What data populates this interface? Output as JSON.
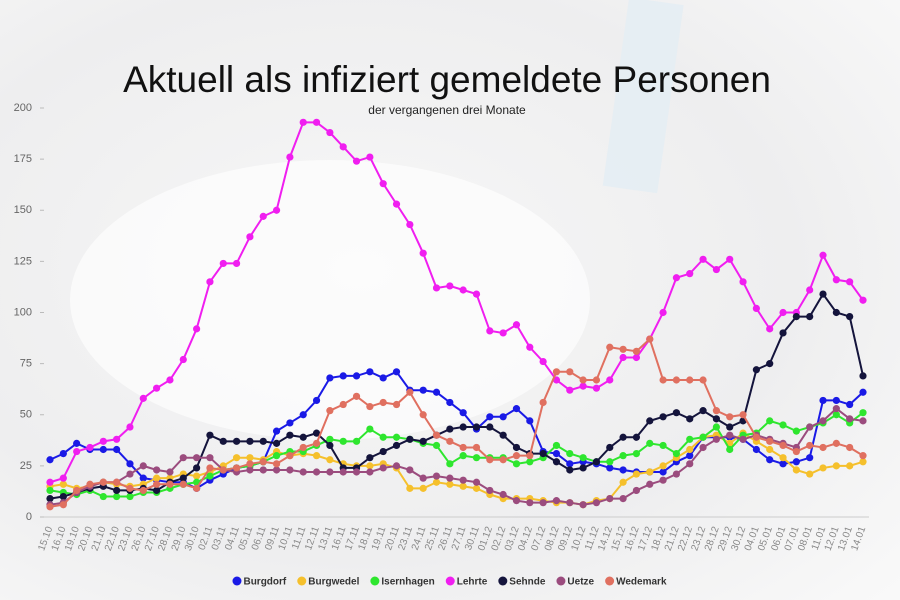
{
  "chart_data": {
    "type": "line",
    "title": "Aktuell als infiziert gemeldete Personen",
    "subtitle": "der vergangenen drei Monate",
    "categories": [
      "15.10",
      "16.10",
      "19.10",
      "20.10",
      "21.10",
      "22.10",
      "23.10",
      "26.10",
      "27.10",
      "28.10",
      "29.10",
      "30.10",
      "02.11",
      "03.11",
      "04.11",
      "05.11",
      "06.11",
      "09.11",
      "10.11",
      "11.11",
      "12.11",
      "13.11",
      "16.11",
      "17.11",
      "18.11",
      "19.11",
      "20.11",
      "23.11",
      "24.11",
      "25.11",
      "26.11",
      "27.11",
      "30.11",
      "01.12",
      "02.12",
      "03.12",
      "04.12",
      "07.12",
      "08.12",
      "09.12",
      "10.12",
      "11.12",
      "14.12",
      "15.12",
      "16.12",
      "17.12",
      "18.12",
      "21.12",
      "22.12",
      "23.12",
      "28.12",
      "29.12",
      "30.12",
      "04.01",
      "05.01",
      "06.01",
      "07.01",
      "08.01",
      "11.01",
      "12.01",
      "13.01",
      "14.01"
    ],
    "ylim": [
      0,
      200
    ],
    "yticks": [
      0,
      25,
      50,
      75,
      100,
      125,
      150,
      175,
      200
    ],
    "legend": "bottom",
    "series": [
      {
        "name": "Burgdorf",
        "color": "#1a1ae6",
        "values": [
          28,
          31,
          36,
          33,
          33,
          33,
          26,
          19,
          18,
          17,
          17,
          14,
          18,
          21,
          24,
          25,
          27,
          42,
          46,
          50,
          57,
          68,
          69,
          69,
          71,
          68,
          71,
          62,
          62,
          61,
          56,
          51,
          43,
          49,
          49,
          53,
          47,
          32,
          31,
          26,
          27,
          26,
          24,
          23,
          22,
          22,
          22,
          27,
          30,
          39,
          39,
          39,
          38,
          33,
          28,
          26,
          27,
          29,
          57,
          57,
          55,
          61
        ]
      },
      {
        "name": "Burgwedel",
        "color": "#f5c02c",
        "values": [
          15,
          16,
          14,
          15,
          17,
          16,
          15,
          16,
          19,
          19,
          21,
          20,
          22,
          25,
          29,
          29,
          28,
          32,
          30,
          31,
          30,
          28,
          26,
          25,
          25,
          26,
          24,
          14,
          14,
          17,
          16,
          15,
          14,
          11,
          9,
          9,
          9,
          8,
          7,
          7,
          6,
          8,
          9,
          17,
          21,
          22,
          25,
          29,
          33,
          39,
          40,
          36,
          41,
          37,
          33,
          29,
          23,
          21,
          24,
          25,
          25,
          27
        ]
      },
      {
        "name": "Isernhagen",
        "color": "#2ee62e",
        "values": [
          13,
          12,
          11,
          13,
          10,
          10,
          10,
          12,
          12,
          14,
          16,
          17,
          20,
          23,
          24,
          25,
          27,
          30,
          32,
          32,
          35,
          38,
          37,
          37,
          43,
          39,
          39,
          38,
          36,
          35,
          26,
          30,
          29,
          29,
          29,
          26,
          27,
          29,
          35,
          31,
          29,
          27,
          27,
          30,
          31,
          36,
          35,
          31,
          38,
          39,
          44,
          33,
          40,
          41,
          47,
          45,
          42,
          44,
          46,
          50,
          46,
          51
        ]
      },
      {
        "name": "Lehrte",
        "color": "#f01ef0",
        "values": [
          17,
          19,
          32,
          34,
          37,
          38,
          44,
          58,
          63,
          67,
          77,
          92,
          115,
          124,
          124,
          137,
          147,
          150,
          176,
          193,
          193,
          188,
          181,
          174,
          176,
          163,
          153,
          143,
          129,
          112,
          113,
          111,
          109,
          91,
          90,
          94,
          83,
          76,
          67,
          62,
          64,
          63,
          67,
          78,
          78,
          87,
          100,
          117,
          119,
          126,
          121,
          126,
          115,
          102,
          92,
          100,
          100,
          111,
          128,
          116,
          115,
          106
        ]
      },
      {
        "name": "Sehnde",
        "color": "#14143c",
        "values": [
          9,
          10,
          12,
          14,
          15,
          13,
          13,
          14,
          13,
          17,
          19,
          24,
          40,
          37,
          37,
          37,
          37,
          36,
          40,
          39,
          41,
          35,
          24,
          24,
          29,
          32,
          35,
          38,
          37,
          40,
          43,
          44,
          44,
          44,
          40,
          34,
          31,
          31,
          27,
          23,
          24,
          27,
          34,
          39,
          39,
          47,
          49,
          51,
          48,
          52,
          48,
          44,
          47,
          72,
          75,
          90,
          98,
          98,
          109,
          100,
          98,
          69
        ]
      },
      {
        "name": "Uetze",
        "color": "#9b4c7e",
        "values": [
          6,
          7,
          12,
          15,
          17,
          17,
          21,
          25,
          23,
          22,
          29,
          29,
          29,
          23,
          22,
          23,
          23,
          23,
          23,
          22,
          22,
          22,
          22,
          22,
          22,
          24,
          25,
          23,
          19,
          20,
          19,
          18,
          17,
          13,
          11,
          8,
          7,
          7,
          8,
          7,
          6,
          7,
          9,
          9,
          13,
          16,
          18,
          21,
          26,
          34,
          38,
          40,
          38,
          40,
          38,
          36,
          34,
          44,
          47,
          53,
          48,
          47
        ]
      },
      {
        "name": "Wedemark",
        "color": "#e07060",
        "values": [
          5,
          6,
          13,
          16,
          17,
          17,
          14,
          13,
          16,
          16,
          16,
          14,
          24,
          23,
          24,
          26,
          27,
          26,
          30,
          34,
          36,
          52,
          55,
          59,
          54,
          56,
          55,
          61,
          50,
          40,
          37,
          34,
          34,
          28,
          28,
          30,
          30,
          56,
          71,
          71,
          67,
          67,
          83,
          82,
          81,
          87,
          67,
          67,
          67,
          67,
          52,
          49,
          50,
          39,
          37,
          35,
          32,
          35,
          34,
          36,
          34,
          30
        ]
      }
    ]
  }
}
